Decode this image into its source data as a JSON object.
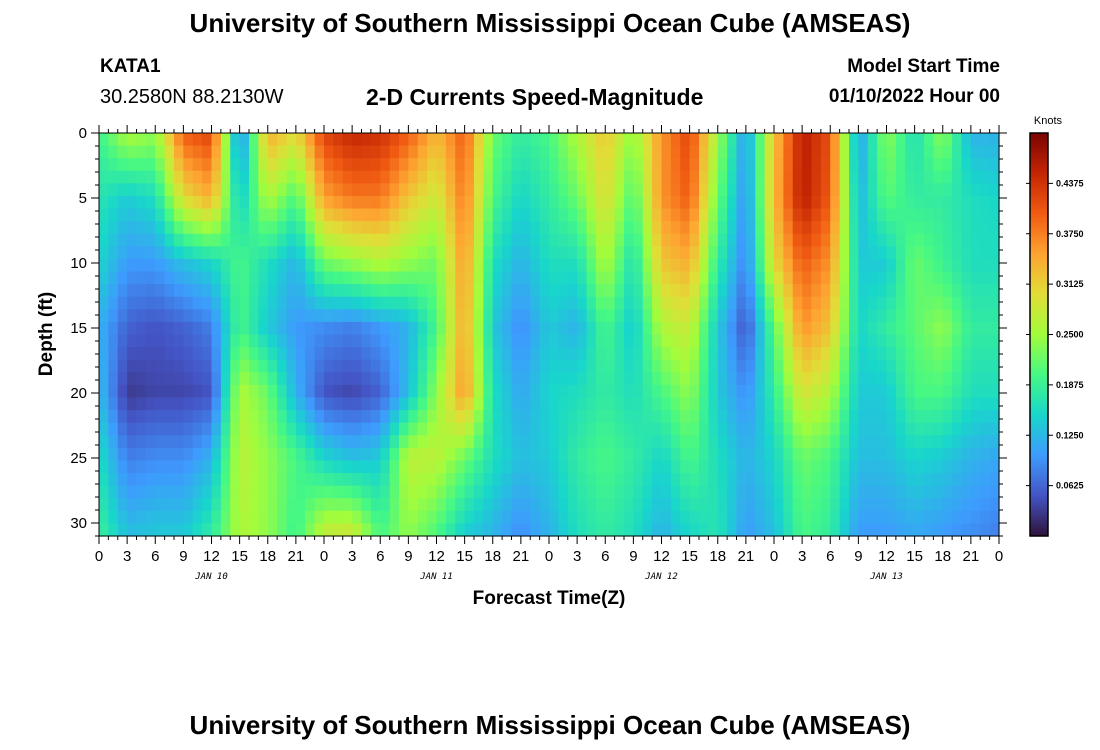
{
  "page": {
    "title": "University of Southern Mississippi Ocean Cube (AMSEAS)",
    "footer_title": "University of Southern Mississippi Ocean Cube (AMSEAS)",
    "station": "KATA1",
    "coords": "30.2580N  88.2130W",
    "subtitle": "2-D Currents Speed-Magnitude",
    "model_start_label": "Model Start Time",
    "model_start_value": "01/10/2022 Hour 00"
  },
  "chart_data": {
    "type": "heatmap",
    "title": "2-D Currents Speed-Magnitude",
    "xlabel": "Forecast Time(Z)",
    "ylabel": "Depth (ft)",
    "x_range_hours": [
      0,
      96
    ],
    "y_range_ft": [
      0,
      31
    ],
    "x_tick_labels": [
      "0",
      "3",
      "6",
      "9",
      "12",
      "15",
      "18",
      "21",
      "0",
      "3",
      "6",
      "9",
      "12",
      "15",
      "18",
      "21",
      "0",
      "3",
      "6",
      "9",
      "12",
      "15",
      "18",
      "21",
      "0",
      "3",
      "6",
      "9",
      "12",
      "15",
      "18",
      "21",
      "0"
    ],
    "y_tick_labels": [
      "0",
      "5",
      "10",
      "15",
      "20",
      "25",
      "30"
    ],
    "day_labels": [
      "JAN 10",
      "JAN 11",
      "JAN 12",
      "JAN 13"
    ],
    "colorbar": {
      "units": "Knots",
      "range": [
        0,
        0.5
      ],
      "tick_labels": [
        "0.4375",
        "0.3750",
        "0.3125",
        "0.2500",
        "0.1875",
        "0.1250",
        "0.0625"
      ],
      "colors": [
        "#30123b",
        "#4454c4",
        "#3e9bfe",
        "#18d6cb",
        "#46f884",
        "#a2fc3c",
        "#e1dd37",
        "#fea331",
        "#f05b12",
        "#c42503",
        "#7a0403"
      ]
    },
    "speed_profiles_knots": {
      "depths_ft": [
        0,
        5,
        10,
        15,
        20,
        25,
        31
      ],
      "hours": [
        0,
        3,
        6,
        9,
        12,
        15,
        18,
        21,
        24,
        27,
        30,
        33,
        36,
        39,
        42,
        45,
        48,
        51,
        54,
        57,
        60,
        63,
        66,
        69,
        72,
        75,
        78,
        81,
        84,
        87,
        90,
        93,
        96
      ],
      "values": [
        [
          0.19,
          0.17,
          0.15,
          0.12,
          0.13,
          0.16,
          0.19
        ],
        [
          0.26,
          0.14,
          0.1,
          0.06,
          0.03,
          0.08,
          0.13
        ],
        [
          0.24,
          0.16,
          0.1,
          0.05,
          0.04,
          0.09,
          0.14
        ],
        [
          0.4,
          0.3,
          0.13,
          0.06,
          0.04,
          0.09,
          0.14
        ],
        [
          0.42,
          0.34,
          0.15,
          0.08,
          0.05,
          0.12,
          0.18
        ],
        [
          0.08,
          0.14,
          0.2,
          0.2,
          0.26,
          0.27,
          0.26
        ],
        [
          0.34,
          0.26,
          0.16,
          0.14,
          0.22,
          0.24,
          0.24
        ],
        [
          0.3,
          0.2,
          0.12,
          0.1,
          0.12,
          0.2,
          0.19
        ],
        [
          0.42,
          0.35,
          0.22,
          0.09,
          0.05,
          0.15,
          0.28
        ],
        [
          0.45,
          0.38,
          0.24,
          0.08,
          0.04,
          0.13,
          0.29
        ],
        [
          0.44,
          0.38,
          0.26,
          0.1,
          0.06,
          0.14,
          0.2
        ],
        [
          0.4,
          0.32,
          0.24,
          0.12,
          0.13,
          0.27,
          0.24
        ],
        [
          0.33,
          0.28,
          0.22,
          0.2,
          0.24,
          0.27,
          0.2
        ],
        [
          0.4,
          0.38,
          0.36,
          0.35,
          0.36,
          0.22,
          0.14
        ],
        [
          0.22,
          0.2,
          0.16,
          0.14,
          0.16,
          0.16,
          0.12
        ],
        [
          0.18,
          0.15,
          0.12,
          0.09,
          0.11,
          0.13,
          0.09
        ],
        [
          0.2,
          0.18,
          0.16,
          0.14,
          0.15,
          0.14,
          0.12
        ],
        [
          0.26,
          0.22,
          0.16,
          0.12,
          0.16,
          0.18,
          0.16
        ],
        [
          0.32,
          0.3,
          0.26,
          0.2,
          0.18,
          0.2,
          0.18
        ],
        [
          0.24,
          0.2,
          0.16,
          0.14,
          0.16,
          0.18,
          0.16
        ],
        [
          0.36,
          0.36,
          0.32,
          0.26,
          0.2,
          0.15,
          0.12
        ],
        [
          0.42,
          0.4,
          0.34,
          0.28,
          0.24,
          0.2,
          0.15
        ],
        [
          0.25,
          0.22,
          0.18,
          0.14,
          0.14,
          0.16,
          0.17
        ],
        [
          0.1,
          0.09,
          0.08,
          0.05,
          0.09,
          0.12,
          0.1
        ],
        [
          0.32,
          0.33,
          0.3,
          0.21,
          0.18,
          0.15,
          0.13
        ],
        [
          0.46,
          0.46,
          0.4,
          0.36,
          0.29,
          0.22,
          0.2
        ],
        [
          0.41,
          0.4,
          0.36,
          0.32,
          0.26,
          0.2,
          0.18
        ],
        [
          0.1,
          0.12,
          0.14,
          0.15,
          0.14,
          0.13,
          0.1
        ],
        [
          0.24,
          0.21,
          0.14,
          0.18,
          0.14,
          0.13,
          0.1
        ],
        [
          0.16,
          0.18,
          0.22,
          0.21,
          0.2,
          0.15,
          0.11
        ],
        [
          0.24,
          0.18,
          0.19,
          0.24,
          0.2,
          0.14,
          0.1
        ],
        [
          0.12,
          0.16,
          0.16,
          0.18,
          0.16,
          0.12,
          0.09
        ],
        [
          0.12,
          0.15,
          0.16,
          0.18,
          0.16,
          0.11,
          0.08
        ]
      ]
    }
  }
}
